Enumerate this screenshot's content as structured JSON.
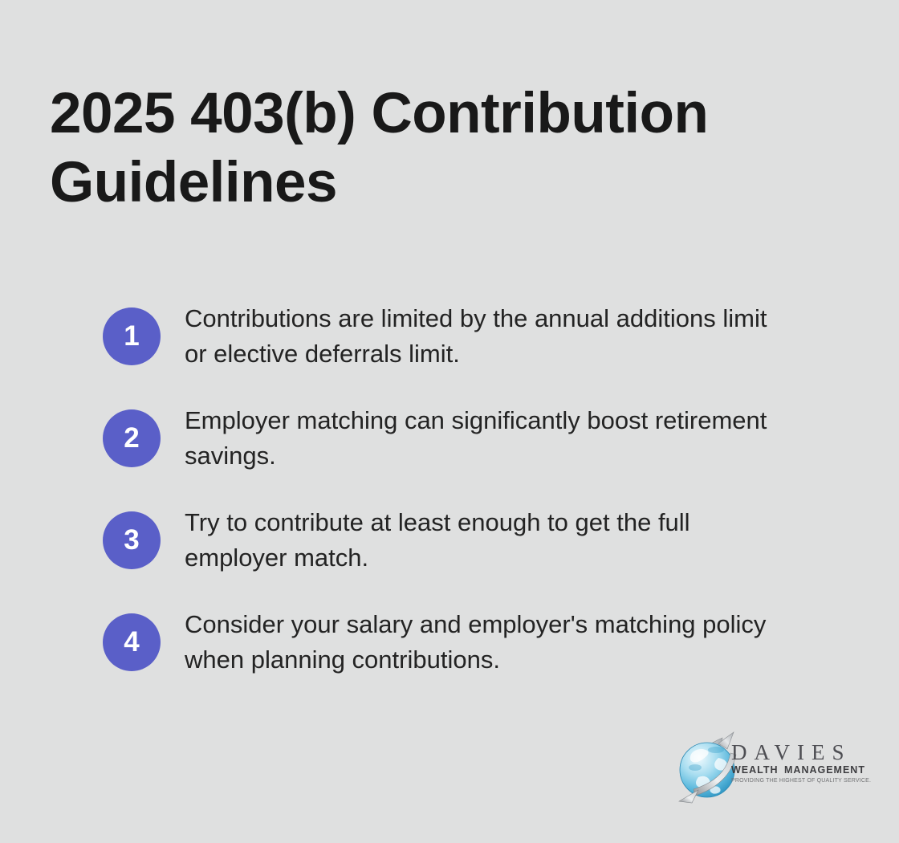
{
  "page": {
    "background_color": "#dfe0e0",
    "accent_color": "#5a5fc8",
    "title_color": "#191919",
    "body_text_color": "#232323",
    "title_lines": [
      "2025 403(b) Contribution",
      "Guidelines"
    ]
  },
  "items": [
    {
      "number": "1",
      "lines": [
        "Contributions are limited by the annual additions limit",
        "or elective deferrals limit."
      ]
    },
    {
      "number": "2",
      "lines": [
        "Employer matching can significantly boost retirement",
        "savings."
      ]
    },
    {
      "number": "3",
      "lines": [
        "Try to contribute at least enough to get the full",
        "employer match."
      ]
    },
    {
      "number": "4",
      "lines": [
        "Consider your salary and employer's matching policy",
        "when planning contributions."
      ]
    }
  ],
  "logo": {
    "brand": "DAVIES",
    "subtitle": "WEALTH MANAGEMENT",
    "tagline": "PROVIDING THE HIGHEST OF QUALITY SERVICE.",
    "globe_icon": "globe-with-silver-swoosh-arrows",
    "globe_blue": "#5cb9dd",
    "arrow_silver": "#b8bbbe"
  }
}
